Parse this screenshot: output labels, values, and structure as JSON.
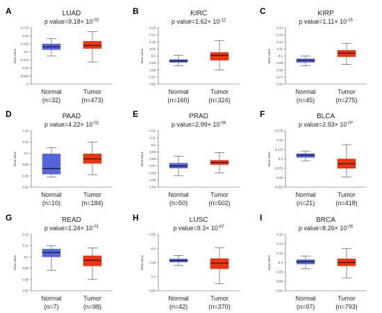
{
  "chart_data": [
    {
      "type": "boxplot",
      "panel_label": "A",
      "title": "LUAD",
      "p_value": {
        "prefix": "p value=",
        "mantissa": "9.18",
        "times": "× 10",
        "exponent": "-03"
      },
      "y_axis": {
        "label": "Beta value",
        "ylim": [
          0,
          0.175
        ],
        "ticks": [
          "0",
          "0.025",
          "0.05",
          "0.075",
          "0.1",
          "0.125",
          "0.15",
          "0.175"
        ]
      },
      "colors": {
        "Normal": "#5566dd",
        "Tumor": "#ee3311"
      },
      "groups": [
        {
          "name": "Normal",
          "n_label": "(n=32)",
          "min": 0.088,
          "q1": 0.107,
          "median": 0.116,
          "q3": 0.125,
          "max": 0.142
        },
        {
          "name": "Tumor",
          "n_label": "(n=473)",
          "min": 0.069,
          "q1": 0.111,
          "median": 0.12,
          "q3": 0.133,
          "max": 0.163
        }
      ]
    },
    {
      "type": "boxplot",
      "panel_label": "B",
      "title": "KIRC",
      "p_value": {
        "prefix": "p value=",
        "mantissa": "1.62",
        "times": "× 10",
        "exponent": "-12"
      },
      "y_axis": {
        "label": "Beta value",
        "ylim": [
          0.06,
          0.14
        ],
        "ticks": [
          "0.06",
          "0.07",
          "0.08",
          "0.09",
          "0.1",
          "0.11",
          "0.12",
          "0.13",
          "0.14"
        ]
      },
      "colors": {
        "Normal": "#5566dd",
        "Tumor": "#ee3311"
      },
      "groups": [
        {
          "name": "Normal",
          "n_label": "(n=160)",
          "min": 0.086,
          "q1": 0.091,
          "median": 0.093,
          "q3": 0.095,
          "max": 0.101
        },
        {
          "name": "Tumor",
          "n_label": "(n=324)",
          "min": 0.08,
          "q1": 0.094,
          "median": 0.101,
          "q3": 0.105,
          "max": 0.122
        }
      ]
    },
    {
      "type": "boxplot",
      "panel_label": "C",
      "title": "KIRP",
      "p_value": {
        "prefix": "p value=",
        "mantissa": "1.11",
        "times": "× 10",
        "exponent": "-16"
      },
      "y_axis": {
        "label": "Beta value",
        "ylim": [
          0.06,
          0.14
        ],
        "ticks": [
          "0.06",
          "0.07",
          "0.08",
          "0.09",
          "0.1",
          "0.11",
          "0.12",
          "0.13",
          "0.14"
        ]
      },
      "colors": {
        "Normal": "#5566dd",
        "Tumor": "#ee3311"
      },
      "groups": [
        {
          "name": "Normal",
          "n_label": "(n=45)",
          "min": 0.086,
          "q1": 0.091,
          "median": 0.094,
          "q3": 0.096,
          "max": 0.1
        },
        {
          "name": "Tumor",
          "n_label": "(n=275)",
          "min": 0.088,
          "q1": 0.099,
          "median": 0.104,
          "q3": 0.108,
          "max": 0.118
        }
      ]
    },
    {
      "type": "boxplot",
      "panel_label": "D",
      "title": "PAAD",
      "p_value": {
        "prefix": "p value=",
        "mantissa": "4.22",
        "times": "× 10",
        "exponent": "-02"
      },
      "y_axis": {
        "label": "Beta value",
        "ylim": [
          0.04,
          0.14
        ],
        "ticks": [
          "0.04",
          "0.06",
          "0.08",
          "0.1",
          "0.12",
          "0.14"
        ]
      },
      "colors": {
        "Normal": "#5566dd",
        "Tumor": "#ee3311"
      },
      "groups": [
        {
          "name": "Normal",
          "n_label": "(n=10)",
          "min": 0.058,
          "q1": 0.063,
          "median": 0.073,
          "q3": 0.099,
          "max": 0.11
        },
        {
          "name": "Tumor",
          "n_label": "(n=184)",
          "min": 0.062,
          "q1": 0.082,
          "median": 0.09,
          "q3": 0.099,
          "max": 0.12
        }
      ]
    },
    {
      "type": "boxplot",
      "panel_label": "E",
      "title": "PRAD",
      "p_value": {
        "prefix": "p value=",
        "mantissa": "2.99",
        "times": "× 10",
        "exponent": "-09"
      },
      "y_axis": {
        "label": "Beta value",
        "ylim": [
          0.04,
          0.12
        ],
        "ticks": [
          "0.04",
          "0.05",
          "0.06",
          "0.07",
          "0.08",
          "0.09",
          "0.1",
          "0.11",
          "0.12"
        ]
      },
      "colors": {
        "Normal": "#5566dd",
        "Tumor": "#ee3311"
      },
      "groups": [
        {
          "name": "Normal",
          "n_label": "(n=50)",
          "min": 0.056,
          "q1": 0.067,
          "median": 0.07,
          "q3": 0.074,
          "max": 0.084
        },
        {
          "name": "Tumor",
          "n_label": "(n=502)",
          "min": 0.06,
          "q1": 0.072,
          "median": 0.075,
          "q3": 0.078,
          "max": 0.089
        }
      ]
    },
    {
      "type": "boxplot",
      "panel_label": "F",
      "title": "BLCA",
      "p_value": {
        "prefix": "p value=",
        "mantissa": "2.93",
        "times": "× 10",
        "exponent": "-07"
      },
      "y_axis": {
        "label": "Beta value",
        "ylim": [
          0.025,
          0.175
        ],
        "ticks": [
          "0.025",
          "0.05",
          "0.075",
          "0.1",
          "0.125",
          "0.15",
          "0.175"
        ]
      },
      "colors": {
        "Normal": "#5566dd",
        "Tumor": "#ee3311"
      },
      "groups": [
        {
          "name": "Normal",
          "n_label": "(n=21)",
          "min": 0.095,
          "q1": 0.104,
          "median": 0.11,
          "q3": 0.114,
          "max": 0.121
        },
        {
          "name": "Tumor",
          "n_label": "(n=418)",
          "min": 0.052,
          "q1": 0.075,
          "median": 0.087,
          "q3": 0.1,
          "max": 0.138
        }
      ]
    },
    {
      "type": "boxplot",
      "panel_label": "G",
      "title": "READ",
      "p_value": {
        "prefix": "p value=",
        "mantissa": "1.24",
        "times": "× 10",
        "exponent": "-01"
      },
      "y_axis": {
        "label": "Beta value",
        "ylim": [
          0.07,
          0.12
        ],
        "ticks": [
          "0.07",
          "0.08",
          "0.09",
          "0.1",
          "0.11",
          "0.12"
        ]
      },
      "colors": {
        "Normal": "#5566dd",
        "Tumor": "#ee3311"
      },
      "groups": [
        {
          "name": "Normal",
          "n_label": "(n=7)",
          "min": 0.088,
          "q1": 0.1,
          "median": 0.104,
          "q3": 0.107,
          "max": 0.11
        },
        {
          "name": "Tumor",
          "n_label": "(n=98)",
          "min": 0.08,
          "q1": 0.092,
          "median": 0.097,
          "q3": 0.101,
          "max": 0.108
        }
      ]
    },
    {
      "type": "boxplot",
      "panel_label": "H",
      "title": "LUSC",
      "p_value": {
        "prefix": "p value=",
        "mantissa": "9.3",
        "times": "× 10",
        "exponent": "-07"
      },
      "y_axis": {
        "label": "Beta value",
        "ylim": [
          0.05,
          0.25
        ],
        "ticks": [
          "0.05",
          "0.1",
          "0.15",
          "0.2",
          "0.25"
        ]
      },
      "colors": {
        "Normal": "#5566dd",
        "Tumor": "#ee3311"
      },
      "groups": [
        {
          "name": "Normal",
          "n_label": "(n=42)",
          "min": 0.14,
          "q1": 0.152,
          "median": 0.157,
          "q3": 0.163,
          "max": 0.175
        },
        {
          "name": "Tumor",
          "n_label": "(n=370)",
          "min": 0.075,
          "q1": 0.128,
          "median": 0.148,
          "q3": 0.164,
          "max": 0.203
        }
      ]
    },
    {
      "type": "boxplot",
      "panel_label": "I",
      "title": "BRCA",
      "p_value": {
        "prefix": "p value=",
        "mantissa": "8.26",
        "times": "× 10",
        "exponent": "-05"
      },
      "y_axis": {
        "label": "Beta value",
        "ylim": [
          0.04,
          0.16
        ],
        "ticks": [
          "0.04",
          "0.06",
          "0.08",
          "0.1",
          "0.12",
          "0.14",
          "0.16"
        ]
      },
      "colors": {
        "Normal": "#5566dd",
        "Tumor": "#ee3311"
      },
      "groups": [
        {
          "name": "Normal",
          "n_label": "(n=97)",
          "min": 0.087,
          "q1": 0.097,
          "median": 0.102,
          "q3": 0.106,
          "max": 0.114
        },
        {
          "name": "Tumor",
          "n_label": "(n=793)",
          "min": 0.067,
          "q1": 0.093,
          "median": 0.1,
          "q3": 0.108,
          "max": 0.13
        }
      ]
    }
  ]
}
